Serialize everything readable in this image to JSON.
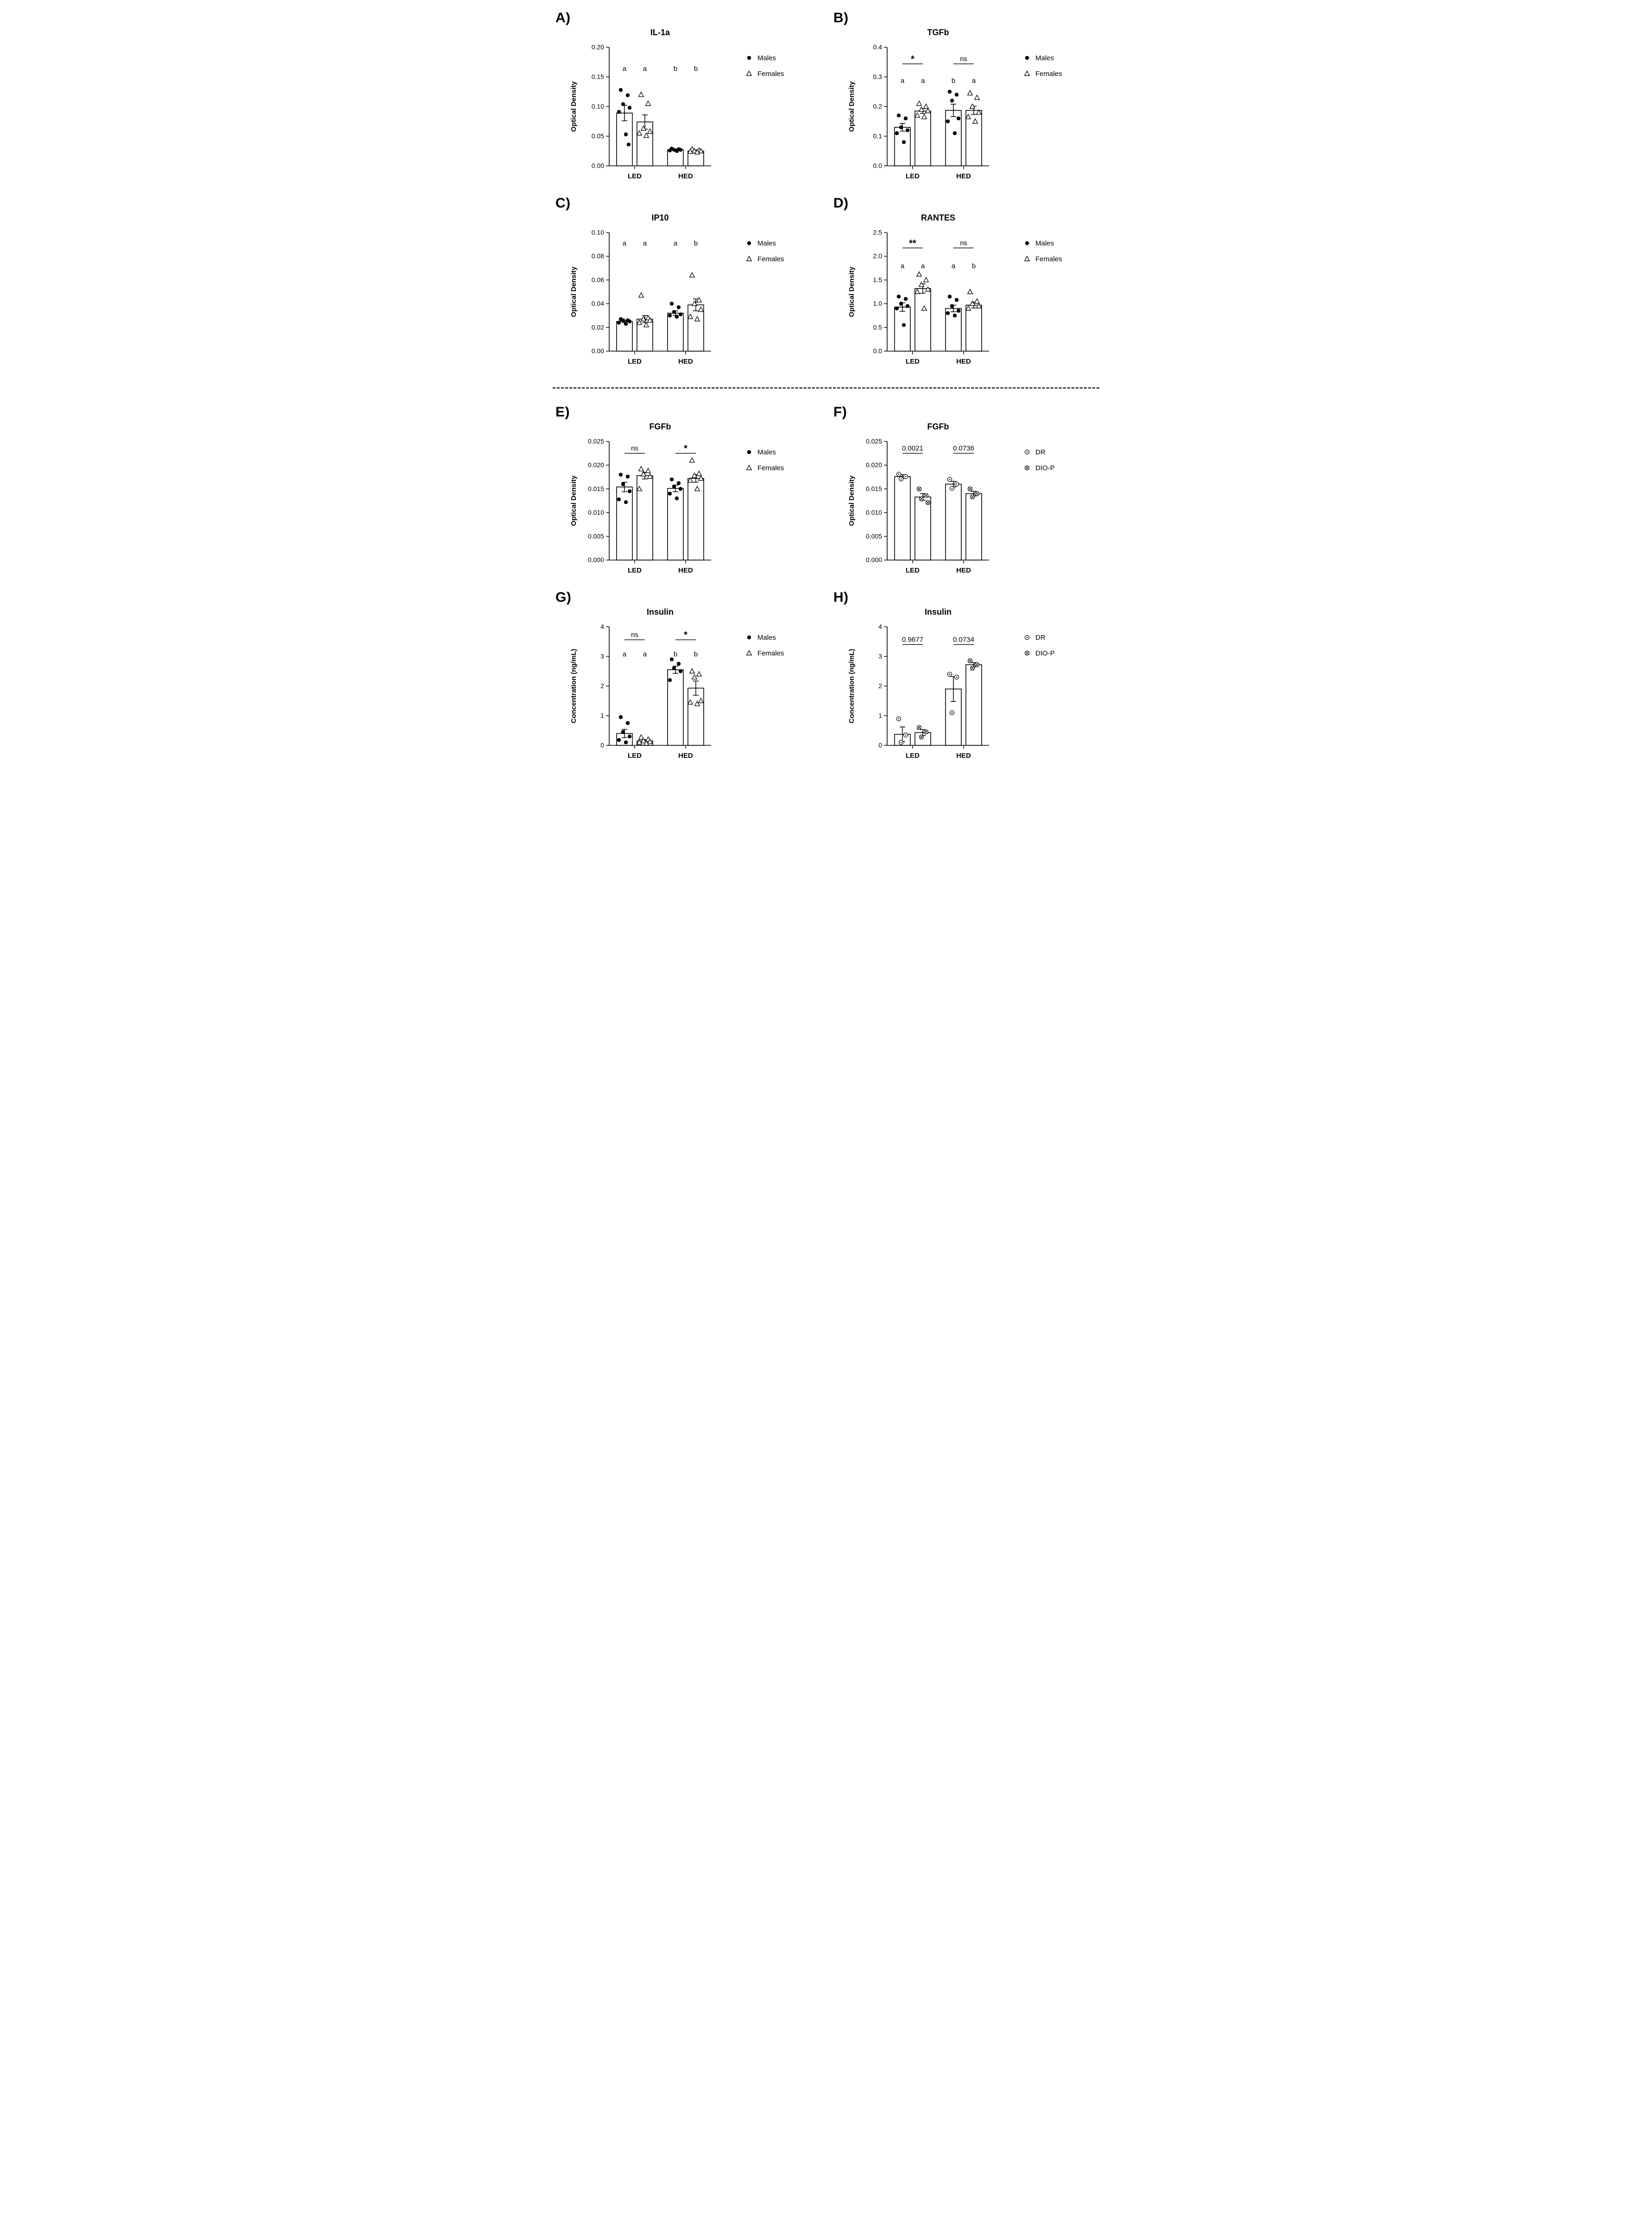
{
  "colors": {
    "ink": "#000000",
    "background": "#ffffff",
    "bar_fill": "#ffffff"
  },
  "divider": {
    "style": "dashed"
  },
  "chart_data": [
    {
      "type": "bar",
      "panel_label": "A)",
      "title": "IL-1a",
      "ylabel": "Optical Density",
      "xlabel": "",
      "ylim": [
        0,
        0.2
      ],
      "yticks": [
        "0.00",
        "0.05",
        "0.10",
        "0.15",
        "0.20"
      ],
      "categories": [
        "LED",
        "HED"
      ],
      "grid": false,
      "legend_position": "right",
      "legend": [
        {
          "label": "Males",
          "marker": "filled-circle"
        },
        {
          "label": "Females",
          "marker": "open-triangle"
        }
      ],
      "series": [
        {
          "name": "Males",
          "marker": "filled-circle",
          "means": [
            0.089,
            0.027
          ],
          "sem": [
            0.013,
            0.0015
          ],
          "points": [
            [
              0.128,
              0.119,
              0.104,
              0.098,
              0.091,
              0.053,
              0.036
            ],
            [
              0.029,
              0.028,
              0.027,
              0.027,
              0.026,
              0.025
            ]
          ]
        },
        {
          "name": "Females",
          "marker": "open-triangle",
          "means": [
            0.074,
            0.025
          ],
          "sem": [
            0.012,
            0.0015
          ],
          "points": [
            [
              0.12,
              0.105,
              0.063,
              0.058,
              0.055,
              0.051
            ],
            [
              0.028,
              0.026,
              0.025,
              0.025,
              0.024,
              0.023
            ]
          ]
        }
      ],
      "annotations": {
        "letters": [
          "a",
          "a",
          "b",
          "b"
        ],
        "letters_y_frac": 0.8,
        "comparisons": [],
        "comparison_y_frac": null
      }
    },
    {
      "type": "bar",
      "panel_label": "B)",
      "title": "TGFb",
      "ylabel": "Optical Density",
      "xlabel": "",
      "ylim": [
        0,
        0.4
      ],
      "yticks": [
        "0.0",
        "0.1",
        "0.2",
        "0.3",
        "0.4"
      ],
      "categories": [
        "LED",
        "HED"
      ],
      "grid": false,
      "legend_position": "right",
      "legend": [
        {
          "label": "Males",
          "marker": "filled-circle"
        },
        {
          "label": "Females",
          "marker": "open-triangle"
        }
      ],
      "series": [
        {
          "name": "Males",
          "marker": "filled-circle",
          "means": [
            0.13,
            0.187
          ],
          "sem": [
            0.013,
            0.021
          ],
          "points": [
            [
              0.17,
              0.16,
              0.13,
              0.12,
              0.11,
              0.08
            ],
            [
              0.25,
              0.24,
              0.22,
              0.16,
              0.15,
              0.11
            ]
          ]
        },
        {
          "name": "Females",
          "marker": "open-triangle",
          "means": [
            0.185,
            0.187
          ],
          "sem": [
            0.008,
            0.014
          ],
          "points": [
            [
              0.21,
              0.2,
              0.19,
              0.185,
              0.17,
              0.165
            ],
            [
              0.245,
              0.23,
              0.2,
              0.18,
              0.165,
              0.15
            ]
          ]
        }
      ],
      "annotations": {
        "letters": [
          "a",
          "a",
          "b",
          "a"
        ],
        "letters_y_frac": 0.7,
        "comparisons": [
          {
            "group": 0,
            "label": "*"
          },
          {
            "group": 1,
            "label": "ns"
          }
        ],
        "comparison_y_frac": 0.86
      }
    },
    {
      "type": "bar",
      "panel_label": "C)",
      "title": "IP10",
      "ylabel": "Optical Density",
      "xlabel": "",
      "ylim": [
        0,
        0.1
      ],
      "yticks": [
        "0.00",
        "0.02",
        "0.04",
        "0.06",
        "0.08",
        "0.10"
      ],
      "categories": [
        "LED",
        "HED"
      ],
      "grid": false,
      "legend_position": "right",
      "legend": [
        {
          "label": "Males",
          "marker": "filled-circle"
        },
        {
          "label": "Females",
          "marker": "open-triangle"
        }
      ],
      "series": [
        {
          "name": "Males",
          "marker": "filled-circle",
          "means": [
            0.025,
            0.032
          ],
          "sem": [
            0.001,
            0.002
          ],
          "points": [
            [
              0.027,
              0.026,
              0.026,
              0.025,
              0.024,
              0.023
            ],
            [
              0.04,
              0.037,
              0.033,
              0.031,
              0.03,
              0.029
            ]
          ]
        },
        {
          "name": "Females",
          "marker": "open-triangle",
          "means": [
            0.027,
            0.039
          ],
          "sem": [
            0.003,
            0.005
          ],
          "points": [
            [
              0.047,
              0.028,
              0.027,
              0.026,
              0.024,
              0.022
            ],
            [
              0.064,
              0.043,
              0.04,
              0.035,
              0.029,
              0.027
            ]
          ]
        }
      ],
      "annotations": {
        "letters": [
          "a",
          "a",
          "a",
          "b"
        ],
        "letters_y_frac": 0.89,
        "comparisons": [],
        "comparison_y_frac": null
      }
    },
    {
      "type": "bar",
      "panel_label": "D)",
      "title": "RANTES",
      "ylabel": "Optical Density",
      "xlabel": "",
      "ylim": [
        0,
        2.5
      ],
      "yticks": [
        "0.0",
        "0.5",
        "1.0",
        "1.5",
        "2.0",
        "2.5"
      ],
      "categories": [
        "LED",
        "HED"
      ],
      "grid": false,
      "legend_position": "right",
      "legend": [
        {
          "label": "Males",
          "marker": "filled-circle"
        },
        {
          "label": "Females",
          "marker": "open-triangle"
        }
      ],
      "series": [
        {
          "name": "Males",
          "marker": "filled-circle",
          "means": [
            0.93,
            0.9
          ],
          "sem": [
            0.09,
            0.07
          ],
          "points": [
            [
              1.15,
              1.1,
              1.0,
              0.95,
              0.9,
              0.55
            ],
            [
              1.15,
              1.08,
              0.95,
              0.85,
              0.8,
              0.75
            ]
          ]
        },
        {
          "name": "Females",
          "marker": "open-triangle",
          "means": [
            1.32,
            0.97
          ],
          "sem": [
            0.1,
            0.06
          ],
          "points": [
            [
              1.62,
              1.5,
              1.4,
              1.3,
              1.25,
              0.9
            ],
            [
              1.25,
              1.05,
              1.0,
              0.95,
              0.9
            ]
          ]
        }
      ],
      "annotations": {
        "letters": [
          "a",
          "a",
          "a",
          "b"
        ],
        "letters_y_frac": 0.7,
        "comparisons": [
          {
            "group": 0,
            "label": "**"
          },
          {
            "group": 1,
            "label": "ns"
          }
        ],
        "comparison_y_frac": 0.87
      }
    },
    {
      "type": "bar",
      "panel_label": "E)",
      "title": "FGFb",
      "ylabel": "Optical Density",
      "xlabel": "",
      "ylim": [
        0,
        0.025
      ],
      "yticks": [
        "0.000",
        "0.005",
        "0.010",
        "0.015",
        "0.020",
        "0.025"
      ],
      "categories": [
        "LED",
        "HED"
      ],
      "grid": false,
      "legend_position": "right",
      "legend": [
        {
          "label": "Males",
          "marker": "filled-circle"
        },
        {
          "label": "Females",
          "marker": "open-triangle"
        }
      ],
      "series": [
        {
          "name": "Males",
          "marker": "filled-circle",
          "means": [
            0.0154,
            0.0151
          ],
          "sem": [
            0.001,
            0.0007
          ],
          "points": [
            [
              0.018,
              0.0176,
              0.016,
              0.0145,
              0.0128,
              0.0122
            ],
            [
              0.017,
              0.0162,
              0.0155,
              0.015,
              0.014,
              0.013
            ]
          ]
        },
        {
          "name": "Females",
          "marker": "open-triangle",
          "means": [
            0.0178,
            0.0172
          ],
          "sem": [
            0.0007,
            0.0008
          ],
          "points": [
            [
              0.0192,
              0.0188,
              0.0181,
              0.0176,
              0.015
            ],
            [
              0.021,
              0.0182,
              0.0178,
              0.0172,
              0.0168,
              0.015
            ]
          ]
        }
      ],
      "annotations": {
        "letters": null,
        "letters_y_frac": null,
        "comparisons": [
          {
            "group": 0,
            "label": "ns"
          },
          {
            "group": 1,
            "label": "*"
          }
        ],
        "comparison_y_frac": 0.9
      }
    },
    {
      "type": "bar",
      "panel_label": "F)",
      "title": "FGFb",
      "ylabel": "Optical Density",
      "xlabel": "",
      "ylim": [
        0,
        0.025
      ],
      "yticks": [
        "0.000",
        "0.005",
        "0.010",
        "0.015",
        "0.020",
        "0.025"
      ],
      "categories": [
        "LED",
        "HED"
      ],
      "grid": false,
      "legend_position": "right",
      "legend": [
        {
          "label": "DR",
          "marker": "circle-dot"
        },
        {
          "label": "DIO-P",
          "marker": "circle-x"
        }
      ],
      "series": [
        {
          "name": "DR",
          "marker": "circle-dot",
          "means": [
            0.0176,
            0.016
          ],
          "sem": [
            0.0004,
            0.0006
          ],
          "points": [
            [
              0.0181,
              0.0176,
              0.0171
            ],
            [
              0.017,
              0.016,
              0.0151
            ]
          ]
        },
        {
          "name": "DIO-P",
          "marker": "circle-x",
          "means": [
            0.0133,
            0.014
          ],
          "sem": [
            0.0007,
            0.0005
          ],
          "points": [
            [
              0.015,
              0.0136,
              0.0129,
              0.0121
            ],
            [
              0.015,
              0.014,
              0.0133
            ]
          ]
        }
      ],
      "annotations": {
        "letters": null,
        "letters_y_frac": null,
        "comparisons": [
          {
            "group": 0,
            "label": "0.0021"
          },
          {
            "group": 1,
            "label": "0.0736"
          }
        ],
        "comparison_y_frac": 0.9
      }
    },
    {
      "type": "bar",
      "panel_label": "G)",
      "title": "Insulin",
      "ylabel": "Concentration (ng/mL)",
      "xlabel": "",
      "ylim": [
        0,
        4
      ],
      "yticks": [
        "0",
        "1",
        "2",
        "3",
        "4"
      ],
      "categories": [
        "LED",
        "HED"
      ],
      "grid": false,
      "legend_position": "right",
      "legend": [
        {
          "label": "Males",
          "marker": "filled-circle"
        },
        {
          "label": "Females",
          "marker": "open-triangle"
        }
      ],
      "series": [
        {
          "name": "Males",
          "marker": "filled-circle",
          "means": [
            0.4,
            2.55
          ],
          "sem": [
            0.14,
            0.12
          ],
          "points": [
            [
              0.95,
              0.75,
              0.45,
              0.3,
              0.18,
              0.1
            ],
            [
              2.9,
              2.75,
              2.6,
              2.5,
              2.2
            ]
          ]
        },
        {
          "name": "Females",
          "marker": "open-triangle",
          "means": [
            0.15,
            1.93
          ],
          "sem": [
            0.04,
            0.24
          ],
          "points": [
            [
              0.27,
              0.2,
              0.15,
              0.12,
              0.1,
              0.07
            ],
            [
              2.5,
              2.4,
              2.3,
              1.5,
              1.45,
              1.4
            ]
          ]
        }
      ],
      "annotations": {
        "letters": [
          "a",
          "a",
          "b",
          "b"
        ],
        "letters_y_frac": 0.75,
        "comparisons": [
          {
            "group": 0,
            "label": "ns"
          },
          {
            "group": 1,
            "label": "*"
          }
        ],
        "comparison_y_frac": 0.89
      }
    },
    {
      "type": "bar",
      "panel_label": "H)",
      "title": "Insulin",
      "ylabel": "Concentration (ng/mL)",
      "xlabel": "",
      "ylim": [
        0,
        4
      ],
      "yticks": [
        "0",
        "1",
        "2",
        "3",
        "4"
      ],
      "categories": [
        "LED",
        "HED"
      ],
      "grid": false,
      "legend_position": "right",
      "legend": [
        {
          "label": "DR",
          "marker": "circle-dot"
        },
        {
          "label": "DIO-P",
          "marker": "circle-x"
        }
      ],
      "series": [
        {
          "name": "DR",
          "marker": "circle-dot",
          "means": [
            0.37,
            1.9
          ],
          "sem": [
            0.25,
            0.42
          ],
          "points": [
            [
              0.9,
              0.35,
              0.1
            ],
            [
              2.4,
              2.3,
              1.1
            ]
          ]
        },
        {
          "name": "DIO-P",
          "marker": "circle-x",
          "means": [
            0.43,
            2.72
          ],
          "sem": [
            0.1,
            0.07
          ],
          "points": [
            [
              0.6,
              0.45,
              0.28
            ],
            [
              2.85,
              2.72,
              2.6
            ]
          ]
        }
      ],
      "annotations": {
        "letters": null,
        "letters_y_frac": null,
        "comparisons": [
          {
            "group": 0,
            "label": "0.9677"
          },
          {
            "group": 1,
            "label": "0.0734"
          }
        ],
        "comparison_y_frac": 0.85
      }
    }
  ]
}
